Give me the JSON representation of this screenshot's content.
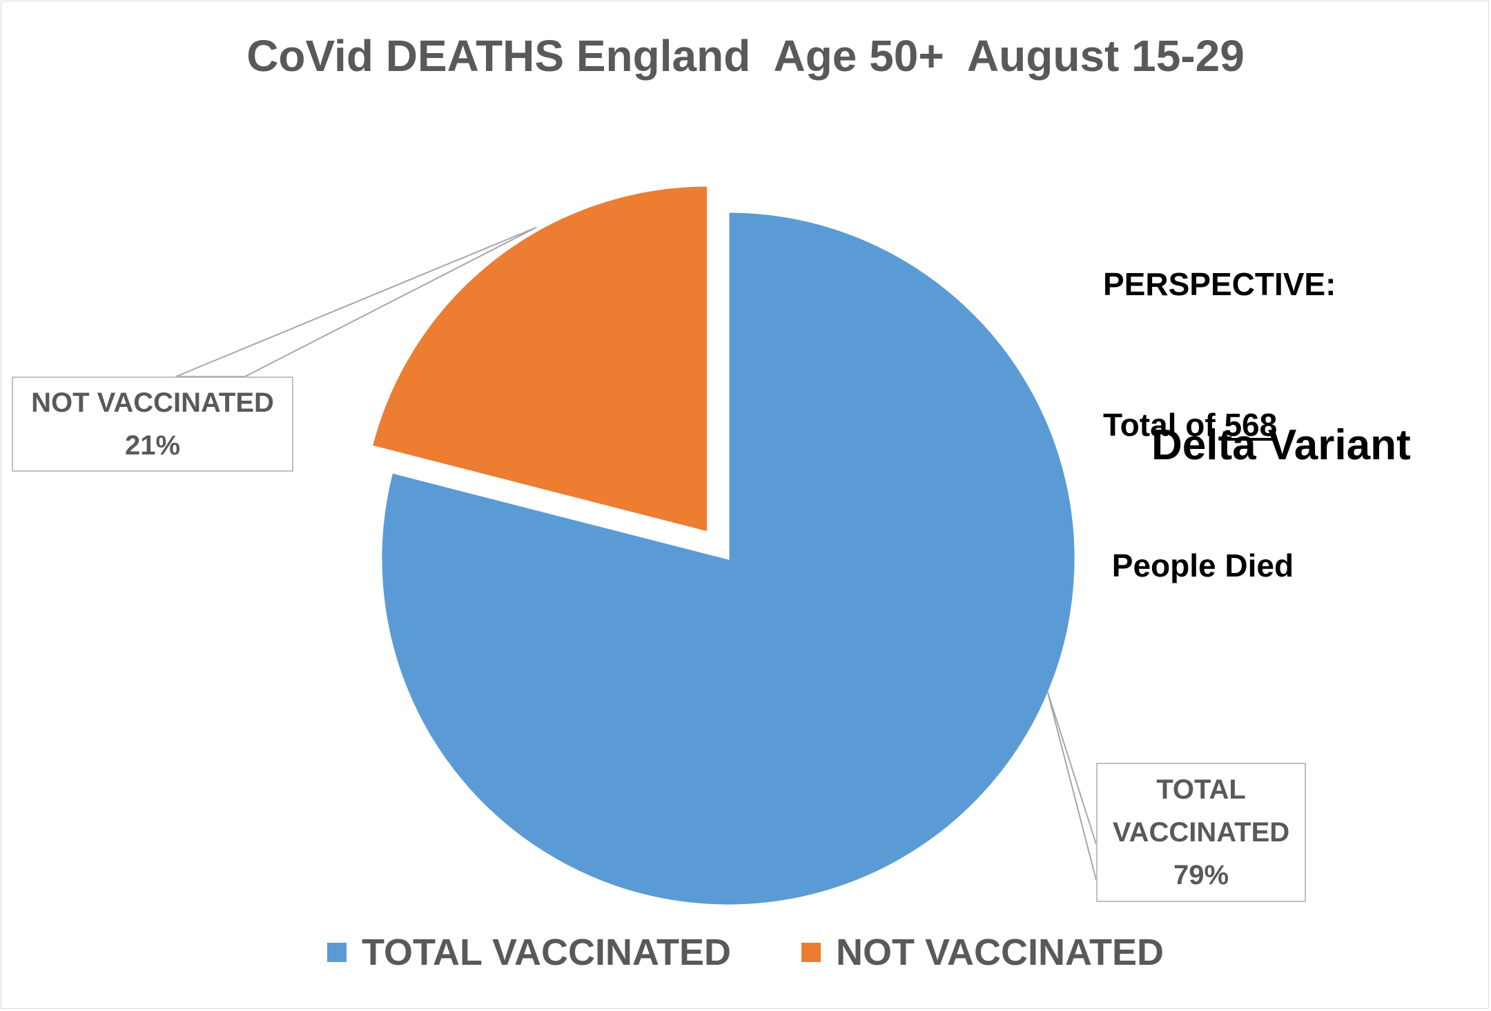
{
  "chart_data": {
    "type": "pie",
    "title": "CoVid DEATHS England  Age 50+  August 15-29",
    "slices": [
      {
        "label": "TOTAL VACCINATED",
        "value": 79,
        "percent_label": "79%",
        "color": "#5b9bd5",
        "exploded": false
      },
      {
        "label": "NOT VACCINATED",
        "value": 21,
        "percent_label": "21%",
        "color": "#ed7d31",
        "exploded": true
      }
    ],
    "start_angle_deg": 0,
    "direction": "clockwise",
    "legend_position": "bottom",
    "annotations": {
      "perspective_heading": "PERSPECTIVE:",
      "perspective_prefix": "Total of ",
      "perspective_number": "568",
      "perspective_suffix": " People Died",
      "variant": "Delta Variant"
    }
  }
}
